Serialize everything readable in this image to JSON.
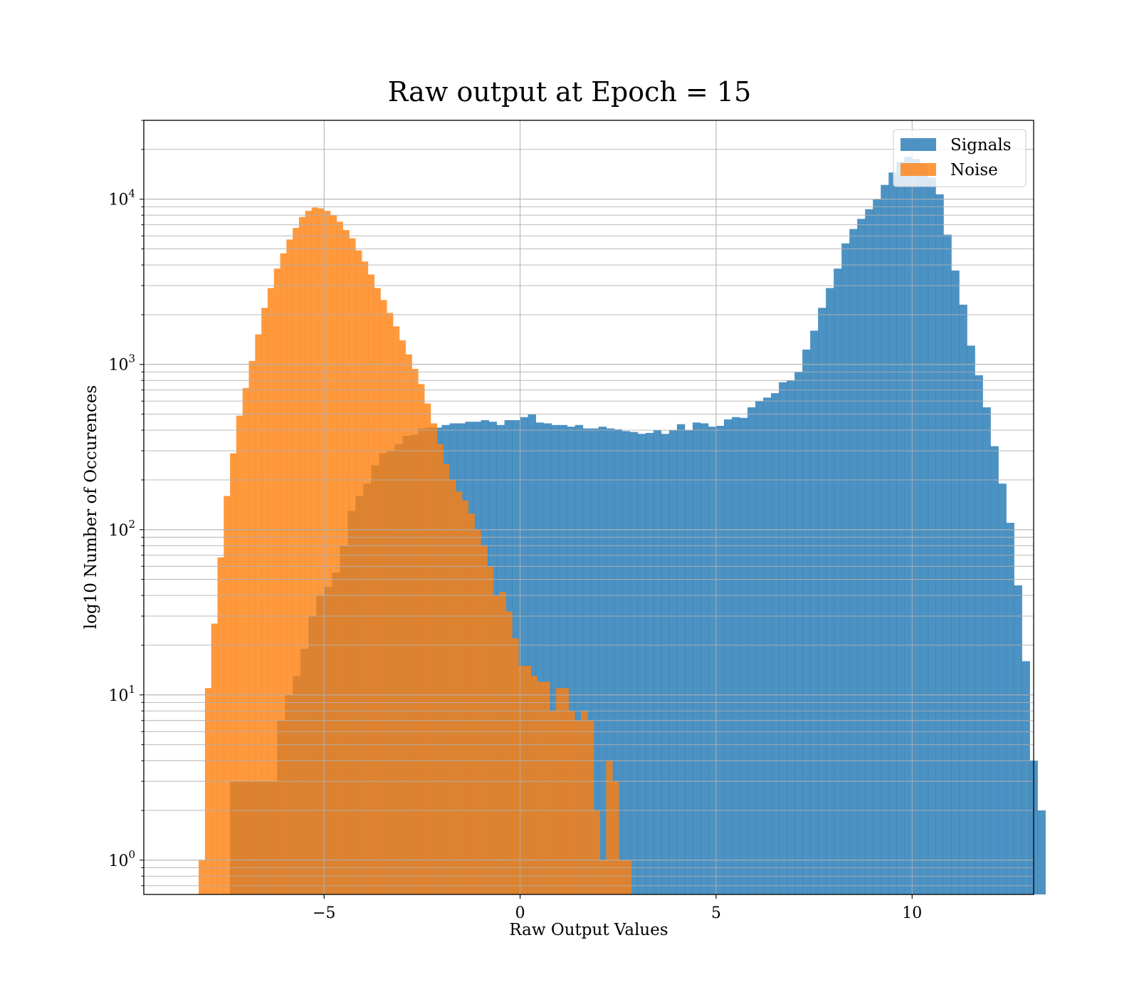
{
  "chart_data": {
    "type": "bar",
    "histogram": true,
    "title": "Raw output at Epoch = 15",
    "xlabel": "Raw Output Values",
    "ylabel": "log10 Number of Occurences",
    "xlim": [
      -9.6,
      13.1
    ],
    "ylim": [
      0.62,
      30000
    ],
    "yscale": "log",
    "grid": true,
    "legend_position": "top-right",
    "x_ticks": [
      {
        "value": -5,
        "label": "−5"
      },
      {
        "value": 0,
        "label": "0"
      },
      {
        "value": 5,
        "label": "5"
      },
      {
        "value": 10,
        "label": "10"
      }
    ],
    "y_ticks": [
      {
        "value": 1,
        "base": "10",
        "exp": "0"
      },
      {
        "value": 10,
        "base": "10",
        "exp": "1"
      },
      {
        "value": 100,
        "base": "10",
        "exp": "2"
      },
      {
        "value": 1000,
        "base": "10",
        "exp": "3"
      },
      {
        "value": 10000,
        "base": "10",
        "exp": "4"
      }
    ],
    "series": [
      {
        "name": "Signals",
        "color": "#1f77b4",
        "opacity": 0.8,
        "bin_start": -7.4,
        "bin_width": 0.2,
        "values": [
          3,
          3,
          3,
          3,
          3,
          3,
          7,
          10,
          13,
          19,
          30,
          40,
          45,
          55,
          80,
          130,
          160,
          190,
          245,
          290,
          300,
          330,
          370,
          375,
          410,
          415,
          415,
          430,
          440,
          440,
          450,
          450,
          460,
          450,
          430,
          460,
          460,
          480,
          500,
          445,
          440,
          430,
          430,
          420,
          430,
          410,
          410,
          420,
          410,
          405,
          395,
          390,
          380,
          385,
          400,
          380,
          400,
          435,
          400,
          445,
          440,
          420,
          425,
          465,
          480,
          475,
          550,
          600,
          630,
          670,
          780,
          800,
          900,
          1230,
          1600,
          2200,
          2900,
          3800,
          5400,
          6600,
          7600,
          8700,
          10000,
          12200,
          14500,
          16800,
          18000,
          17500,
          16200,
          13500,
          10700,
          6100,
          3700,
          2300,
          1300,
          860,
          550,
          320,
          190,
          110,
          46,
          16,
          4,
          2
        ]
      },
      {
        "name": "Noise",
        "color": "#ff7f0e",
        "opacity": 0.8,
        "bin_start": -8.2,
        "bin_width": 0.1599,
        "values": [
          1,
          11,
          27,
          68,
          160,
          290,
          490,
          720,
          1050,
          1520,
          2200,
          2900,
          3800,
          4700,
          5700,
          6700,
          7800,
          8500,
          8900,
          8800,
          8500,
          8000,
          7300,
          6500,
          5800,
          4900,
          4200,
          3500,
          2900,
          2450,
          2050,
          1700,
          1400,
          1150,
          940,
          760,
          580,
          440,
          330,
          250,
          200,
          170,
          150,
          125,
          100,
          80,
          60,
          40,
          42,
          32,
          22,
          15,
          15,
          13,
          12,
          12,
          8,
          11,
          11,
          8,
          7,
          8,
          7,
          2,
          1,
          4,
          3,
          1,
          1
        ]
      }
    ]
  },
  "legend": {
    "items": [
      {
        "label": "Signals",
        "color": "#1f77b4"
      },
      {
        "label": "Noise",
        "color": "#ff7f0e"
      }
    ]
  }
}
